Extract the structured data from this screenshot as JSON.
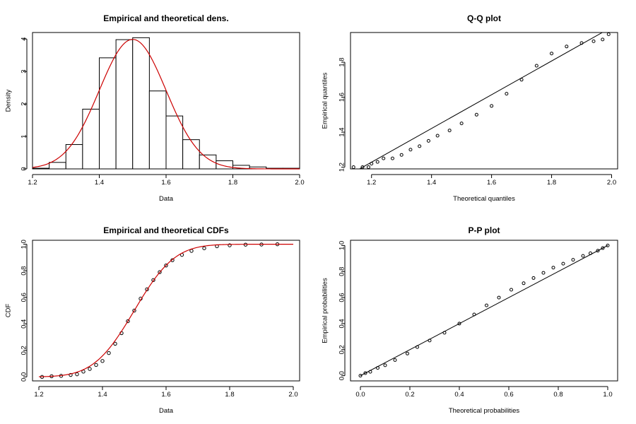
{
  "chart_data": [
    {
      "id": "density",
      "type": "bar",
      "title": "Empirical and theoretical dens.",
      "xlabel": "Data",
      "ylabel": "Density",
      "xlim": [
        1.2,
        2.0
      ],
      "ylim": [
        0,
        4
      ],
      "xticks": [
        "1.2",
        "1.4",
        "1.6",
        "1.8",
        "2.0"
      ],
      "yticks": [
        "0",
        "1",
        "2",
        "3",
        "4"
      ],
      "bin_edges": [
        1.2,
        1.25,
        1.3,
        1.35,
        1.4,
        1.45,
        1.5,
        1.55,
        1.6,
        1.65,
        1.7,
        1.75,
        1.8,
        1.85,
        1.9,
        1.95,
        2.0
      ],
      "values": [
        0.02,
        0.2,
        0.75,
        1.84,
        3.42,
        3.98,
        4.04,
        2.4,
        1.63,
        0.9,
        0.43,
        0.25,
        0.11,
        0.06,
        0.02,
        0.02
      ],
      "theoretical": {
        "distribution": "normal",
        "mean": 1.5,
        "sd": 0.1,
        "color": "#cc0000"
      }
    },
    {
      "id": "qq",
      "type": "scatter",
      "title": "Q-Q plot",
      "xlabel": "Theoretical quantiles",
      "ylabel": "Empirical quantiles",
      "xlim": [
        1.15,
        2.0
      ],
      "ylim": [
        1.2,
        1.95
      ],
      "xticks": [
        "1.2",
        "1.4",
        "1.6",
        "1.8",
        "2.0"
      ],
      "yticks": [
        "1.2",
        "1.4",
        "1.6",
        "1.8"
      ],
      "points": [
        [
          1.14,
          1.2
        ],
        [
          1.17,
          1.2
        ],
        [
          1.19,
          1.2
        ],
        [
          1.2,
          1.22
        ],
        [
          1.22,
          1.23
        ],
        [
          1.24,
          1.25
        ],
        [
          1.27,
          1.25
        ],
        [
          1.3,
          1.27
        ],
        [
          1.33,
          1.3
        ],
        [
          1.36,
          1.32
        ],
        [
          1.39,
          1.35
        ],
        [
          1.42,
          1.38
        ],
        [
          1.46,
          1.41
        ],
        [
          1.5,
          1.45
        ],
        [
          1.55,
          1.5
        ],
        [
          1.6,
          1.55
        ],
        [
          1.65,
          1.62
        ],
        [
          1.7,
          1.7
        ],
        [
          1.75,
          1.78
        ],
        [
          1.8,
          1.85
        ],
        [
          1.85,
          1.89
        ],
        [
          1.9,
          1.91
        ],
        [
          1.94,
          1.92
        ],
        [
          1.97,
          1.93
        ],
        [
          1.99,
          1.96
        ]
      ],
      "reference_line": [
        [
          1.15,
          1.18
        ],
        [
          2.0,
          2.0
        ]
      ]
    },
    {
      "id": "cdf",
      "type": "line",
      "title": "Empirical and theoretical CDFs",
      "xlabel": "Data",
      "ylabel": "CDF",
      "xlim": [
        1.2,
        2.0
      ],
      "ylim": [
        0,
        1
      ],
      "xticks": [
        "1.2",
        "1.4",
        "1.6",
        "1.8",
        "2.0"
      ],
      "yticks": [
        "0.0",
        "0.2",
        "0.4",
        "0.6",
        "0.8",
        "1.0"
      ],
      "points": [
        [
          1.21,
          0.0
        ],
        [
          1.24,
          0.005
        ],
        [
          1.27,
          0.008
        ],
        [
          1.3,
          0.015
        ],
        [
          1.32,
          0.02
        ],
        [
          1.34,
          0.04
        ],
        [
          1.36,
          0.06
        ],
        [
          1.38,
          0.09
        ],
        [
          1.4,
          0.12
        ],
        [
          1.42,
          0.18
        ],
        [
          1.44,
          0.25
        ],
        [
          1.46,
          0.33
        ],
        [
          1.48,
          0.42
        ],
        [
          1.5,
          0.5
        ],
        [
          1.52,
          0.59
        ],
        [
          1.54,
          0.66
        ],
        [
          1.56,
          0.73
        ],
        [
          1.58,
          0.79
        ],
        [
          1.6,
          0.84
        ],
        [
          1.62,
          0.88
        ],
        [
          1.65,
          0.92
        ],
        [
          1.68,
          0.95
        ],
        [
          1.72,
          0.97
        ],
        [
          1.76,
          0.985
        ],
        [
          1.8,
          0.992
        ],
        [
          1.85,
          0.997
        ],
        [
          1.9,
          0.998
        ],
        [
          1.95,
          1.0
        ]
      ],
      "theoretical": {
        "distribution": "normal",
        "mean": 1.5,
        "sd": 0.1,
        "color": "#cc0000"
      }
    },
    {
      "id": "pp",
      "type": "scatter",
      "title": "P-P plot",
      "xlabel": "Theoretical probabilities",
      "ylabel": "Empirical probabilities",
      "xlim": [
        0,
        1
      ],
      "ylim": [
        0,
        1
      ],
      "xticks": [
        "0.0",
        "0.2",
        "0.4",
        "0.6",
        "0.8",
        "1.0"
      ],
      "yticks": [
        "0.0",
        "0.2",
        "0.4",
        "0.6",
        "0.8",
        "1.0"
      ],
      "points": [
        [
          0.0,
          0.0
        ],
        [
          0.02,
          0.02
        ],
        [
          0.04,
          0.03
        ],
        [
          0.07,
          0.06
        ],
        [
          0.1,
          0.08
        ],
        [
          0.14,
          0.12
        ],
        [
          0.19,
          0.17
        ],
        [
          0.23,
          0.22
        ],
        [
          0.28,
          0.27
        ],
        [
          0.34,
          0.33
        ],
        [
          0.4,
          0.4
        ],
        [
          0.46,
          0.47
        ],
        [
          0.51,
          0.54
        ],
        [
          0.56,
          0.6
        ],
        [
          0.61,
          0.66
        ],
        [
          0.66,
          0.71
        ],
        [
          0.7,
          0.75
        ],
        [
          0.74,
          0.79
        ],
        [
          0.78,
          0.83
        ],
        [
          0.82,
          0.86
        ],
        [
          0.86,
          0.89
        ],
        [
          0.9,
          0.92
        ],
        [
          0.93,
          0.94
        ],
        [
          0.96,
          0.96
        ],
        [
          0.98,
          0.98
        ],
        [
          1.0,
          1.0
        ]
      ],
      "reference_line": [
        [
          0,
          0
        ],
        [
          1,
          1
        ]
      ]
    }
  ]
}
